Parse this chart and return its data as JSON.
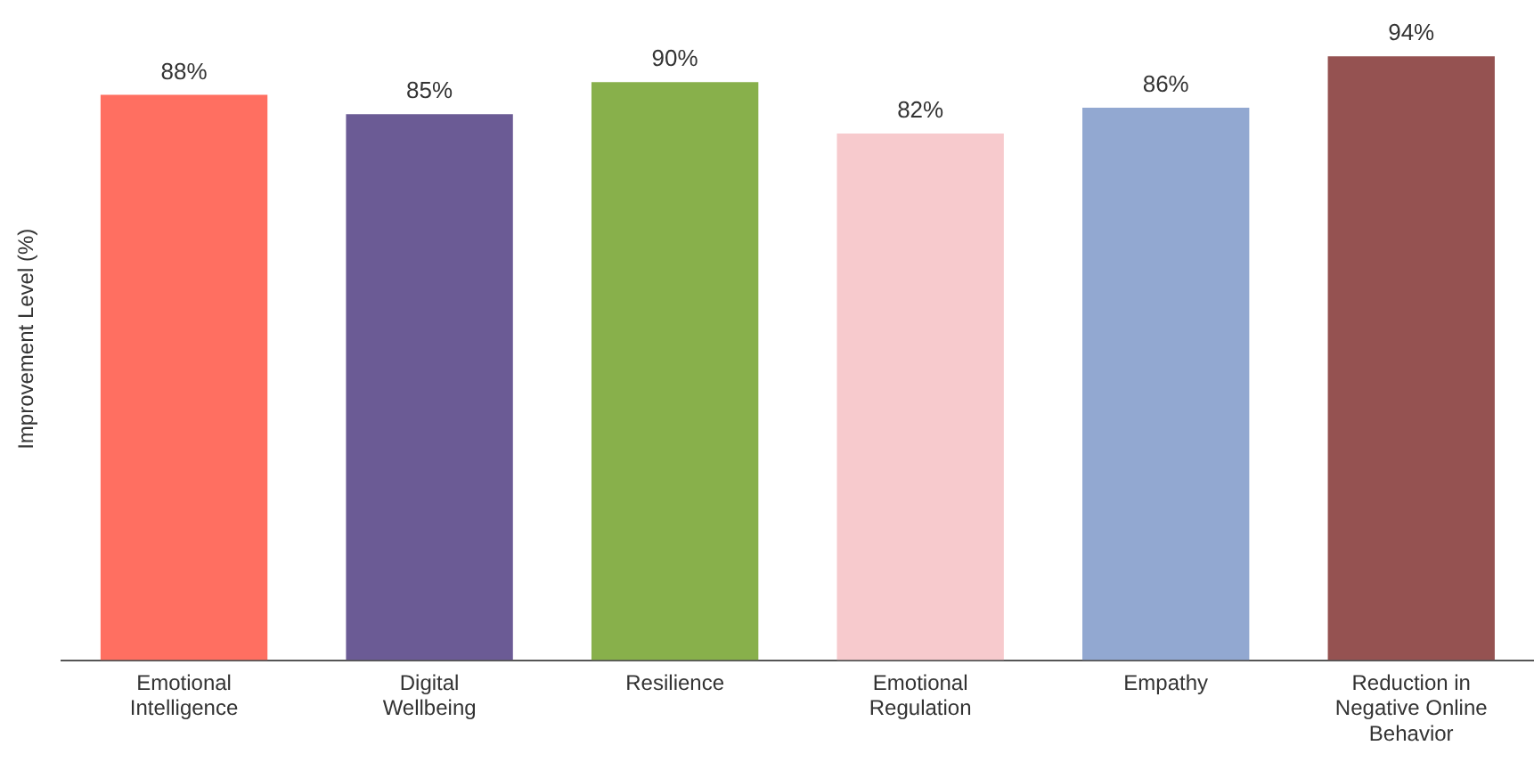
{
  "chart_data": {
    "type": "bar",
    "ylabel": "Improvement Level (%)",
    "categories": [
      "Emotional Intelligence",
      "Digital Wellbeing",
      "Resilience",
      "Emotional Regulation",
      "Empathy",
      "Reduction in Negative Online Behavior"
    ],
    "values": [
      88,
      85,
      90,
      82,
      86,
      94
    ],
    "colors": [
      "#ff6f61",
      "#6b5b95",
      "#88b04b",
      "#f7cacd",
      "#92a8d1",
      "#955251"
    ],
    "value_labels": [
      "88%",
      "85%",
      "90%",
      "82%",
      "86%",
      "94%"
    ],
    "grid": false,
    "legend": false
  }
}
